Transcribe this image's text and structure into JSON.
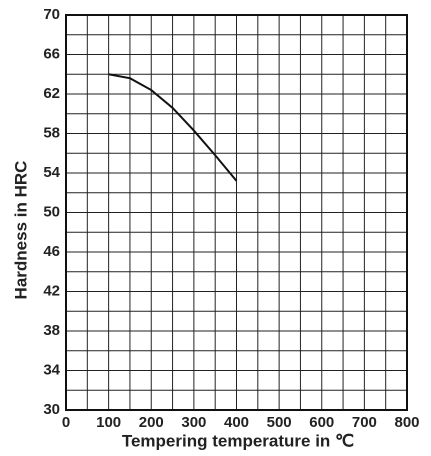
{
  "chart_data": {
    "type": "line",
    "x_label": "Tempering temperature in ℃",
    "y_label": "Hardness in HRC",
    "x": [
      100,
      150,
      200,
      250,
      300,
      350,
      400
    ],
    "series": [
      {
        "color": "#111111",
        "values": [
          64,
          63.6,
          62.4,
          60.6,
          58.3,
          55.8,
          53.2
        ]
      }
    ],
    "xlim": [
      0,
      800
    ],
    "xticks": [
      0,
      100,
      200,
      300,
      400,
      500,
      600,
      700,
      800
    ],
    "x_minor_ticks": [
      50,
      150,
      250,
      350,
      450,
      550,
      650,
      750
    ],
    "ylim": [
      30,
      70
    ],
    "yticks": [
      30,
      34,
      38,
      42,
      46,
      50,
      54,
      58,
      62,
      66,
      70
    ],
    "y_minor_ticks": [
      32,
      36,
      40,
      44,
      48,
      52,
      56,
      60,
      64,
      68
    ],
    "grid": true
  }
}
